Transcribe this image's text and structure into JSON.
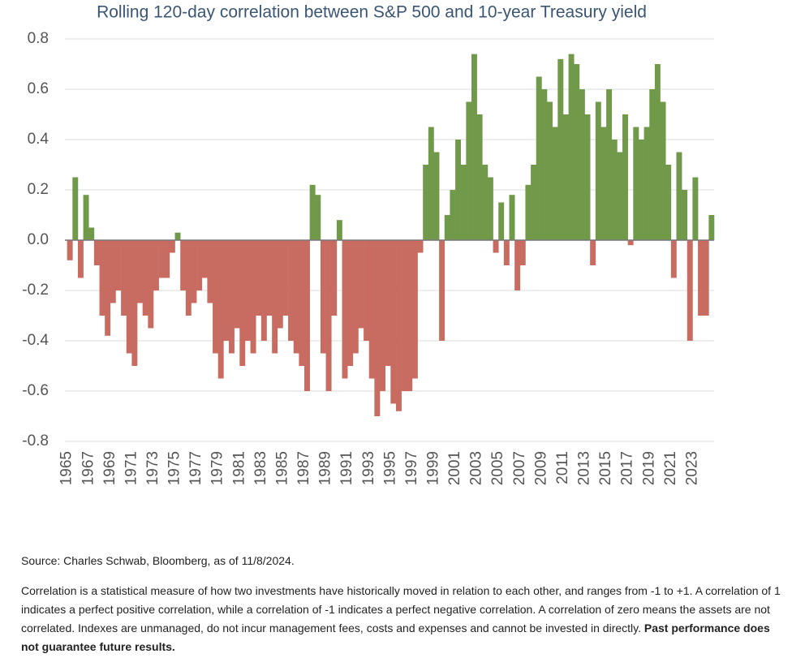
{
  "chart_data": {
    "type": "bar",
    "title": "Rolling 120-day correlation between S&P 500 and 10-year Treasury yield",
    "x": [
      1965,
      1965.5,
      1966,
      1966.5,
      1967,
      1967.5,
      1968,
      1968.5,
      1969,
      1969.5,
      1970,
      1970.5,
      1971,
      1971.5,
      1972,
      1972.5,
      1973,
      1973.5,
      1974,
      1974.5,
      1975,
      1975.5,
      1976,
      1976.5,
      1977,
      1977.5,
      1978,
      1978.5,
      1979,
      1979.5,
      1980,
      1980.5,
      1981,
      1981.5,
      1982,
      1982.5,
      1983,
      1983.5,
      1984,
      1984.5,
      1985,
      1985.5,
      1986,
      1986.5,
      1987,
      1987.5,
      1988,
      1988.5,
      1989,
      1989.5,
      1990,
      1990.5,
      1991,
      1991.5,
      1992,
      1992.5,
      1993,
      1993.5,
      1994,
      1994.5,
      1995,
      1995.5,
      1996,
      1996.5,
      1997,
      1997.5,
      1998,
      1998.5,
      1999,
      1999.5,
      2000,
      2000.5,
      2001,
      2001.5,
      2002,
      2002.5,
      2003,
      2003.5,
      2004,
      2004.5,
      2005,
      2005.5,
      2006,
      2006.5,
      2007,
      2007.5,
      2008,
      2008.5,
      2009,
      2009.5,
      2010,
      2010.5,
      2011,
      2011.5,
      2012,
      2012.5,
      2013,
      2013.5,
      2014,
      2014.5,
      2015,
      2015.5,
      2016,
      2016.5,
      2017,
      2017.5,
      2018,
      2018.5,
      2019,
      2019.5,
      2020,
      2020.5,
      2021,
      2021.5,
      2022,
      2022.5,
      2023,
      2023.5,
      2024,
      2024.5
    ],
    "values": [
      -0.08,
      0.25,
      -0.15,
      0.18,
      0.05,
      -0.1,
      -0.3,
      -0.38,
      -0.25,
      -0.2,
      -0.3,
      -0.45,
      -0.5,
      -0.25,
      -0.3,
      -0.35,
      -0.2,
      -0.15,
      -0.15,
      -0.05,
      0.03,
      -0.2,
      -0.3,
      -0.25,
      -0.2,
      -0.15,
      -0.25,
      -0.45,
      -0.55,
      -0.4,
      -0.45,
      -0.35,
      -0.5,
      -0.4,
      -0.45,
      -0.3,
      -0.4,
      -0.3,
      -0.45,
      -0.35,
      -0.3,
      -0.4,
      -0.45,
      -0.5,
      -0.6,
      0.22,
      0.18,
      -0.45,
      -0.6,
      -0.3,
      0.08,
      -0.55,
      -0.5,
      -0.45,
      -0.35,
      -0.4,
      -0.55,
      -0.7,
      -0.6,
      -0.5,
      -0.65,
      -0.68,
      -0.6,
      -0.6,
      -0.55,
      -0.05,
      0.3,
      0.45,
      0.35,
      -0.4,
      0.1,
      0.2,
      0.4,
      0.3,
      0.55,
      0.74,
      0.5,
      0.3,
      0.25,
      -0.05,
      0.15,
      -0.1,
      0.18,
      -0.2,
      -0.1,
      0.22,
      0.3,
      0.65,
      0.6,
      0.55,
      0.45,
      0.72,
      0.5,
      0.74,
      0.7,
      0.6,
      0.5,
      -0.1,
      0.55,
      0.45,
      0.6,
      0.4,
      0.35,
      0.5,
      -0.02,
      0.45,
      0.4,
      0.45,
      0.6,
      0.7,
      0.55,
      0.3,
      -0.15,
      0.35,
      0.2,
      -0.4,
      0.25,
      -0.3,
      -0.3,
      0.1
    ],
    "positive_color": "#71994a",
    "negative_color": "#c86b60",
    "xlim": [
      1964.8,
      2025
    ],
    "xticks": [
      1965,
      1967,
      1969,
      1971,
      1973,
      1975,
      1977,
      1979,
      1981,
      1983,
      1985,
      1987,
      1989,
      1991,
      1993,
      1995,
      1997,
      1999,
      2001,
      2003,
      2005,
      2007,
      2009,
      2011,
      2013,
      2015,
      2017,
      2019,
      2021,
      2023
    ],
    "ylim": [
      -0.8,
      0.8
    ],
    "yticks": [
      0.8,
      0.6,
      0.4,
      0.2,
      {
        "value": 0,
        "label": "0.0"
      },
      -0.2,
      -0.4,
      -0.6,
      -0.8
    ],
    "grid": true
  },
  "source": "Source: Charles Schwab, Bloomberg, as of 11/8/2024.",
  "description": "Correlation is a statistical measure of how two investments have historically moved in relation to each other, and ranges from -1 to +1. A correlation of 1 indicates a perfect positive correlation, while a correlation of -1 indicates a perfect negative correlation. A correlation of zero means the assets are not correlated. Indexes are unmanaged, do not incur management fees, costs and expenses and cannot be invested in directly.",
  "disclaimer": "Past performance does not guarantee future results."
}
